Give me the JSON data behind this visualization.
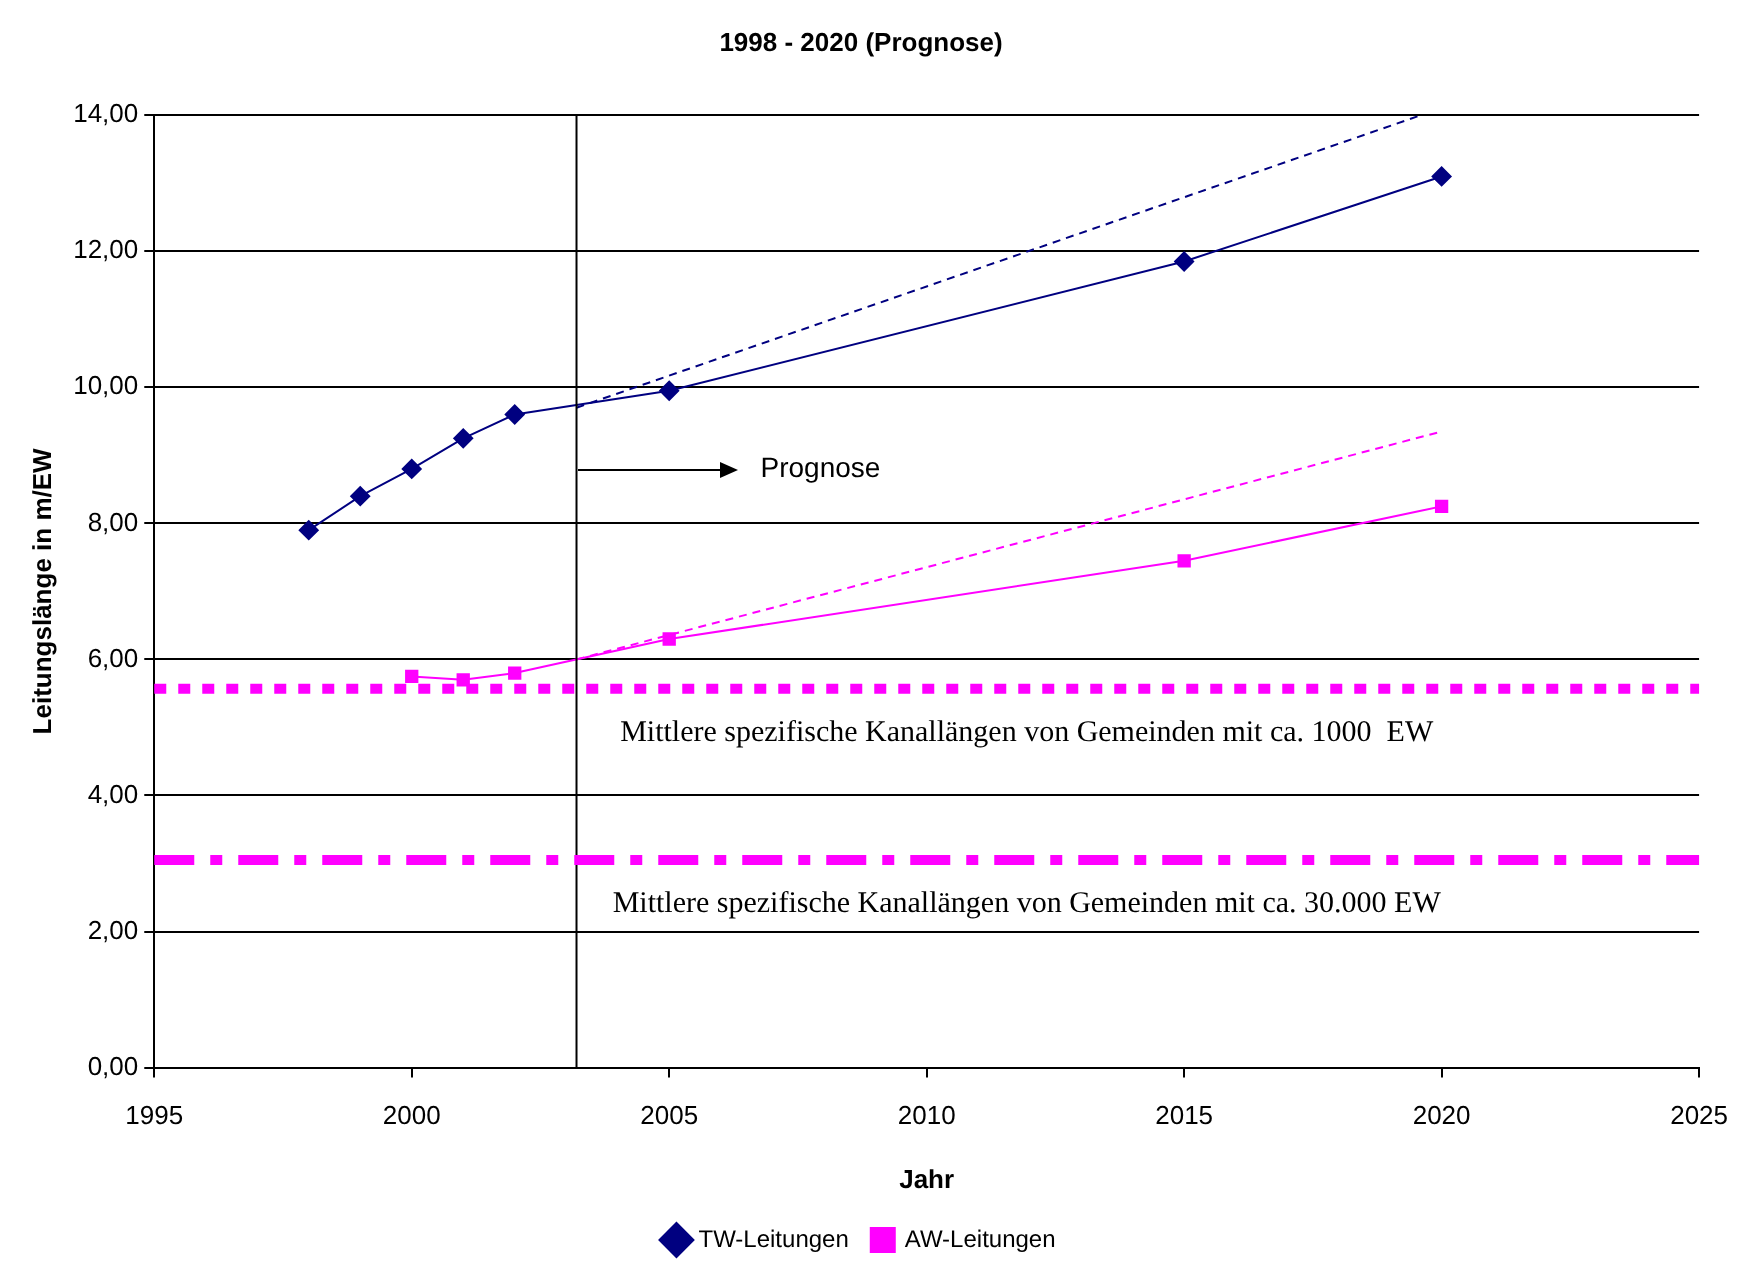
{
  "chart_data": {
    "type": "line",
    "title": "1998 - 2020 (Prognose)",
    "xlabel": "Jahr",
    "ylabel": "Leitungslänge in m/EW",
    "xlim": [
      1995,
      2025
    ],
    "xticks": [
      1995,
      2000,
      2005,
      2010,
      2015,
      2020,
      2025
    ],
    "ylim": [
      0,
      14
    ],
    "yticks": [
      {
        "value": 0,
        "label": "0,00"
      },
      {
        "value": 2,
        "label": "2,00"
      },
      {
        "value": 4,
        "label": "4,00"
      },
      {
        "value": 6,
        "label": "6,00"
      },
      {
        "value": 8,
        "label": "8,00"
      },
      {
        "value": 10,
        "label": "10,00"
      },
      {
        "value": 12,
        "label": "12,00"
      },
      {
        "value": 14,
        "label": "14,00"
      }
    ],
    "grid": "y",
    "legend": "bottom",
    "series": [
      {
        "name": "TW-Leitungen",
        "color": "#000080",
        "marker": "diamond",
        "x": [
          1998,
          1999,
          2000,
          2001,
          2002,
          2005,
          2015,
          2020
        ],
        "values": [
          7.9,
          8.4,
          8.8,
          9.25,
          9.6,
          9.95,
          11.85,
          13.1
        ]
      },
      {
        "name": "AW-Leitungen",
        "color": "#ff00ff",
        "marker": "square",
        "x": [
          2000,
          2001,
          2002,
          2005,
          2015,
          2020
        ],
        "values": [
          5.75,
          5.7,
          5.8,
          6.3,
          7.45,
          8.25
        ]
      },
      {
        "type": "line",
        "color": "#000080",
        "marker": "none",
        "line_style": "dashed",
        "x": [
          2003.2,
          2019.6
        ],
        "values": [
          9.7,
          14
        ]
      },
      {
        "type": "line",
        "color": "#ff00ff",
        "marker": "none",
        "line_style": "dashed",
        "x": [
          2003.2,
          2020
        ],
        "values": [
          6.0,
          9.35
        ]
      }
    ],
    "ref_lines": [
      {
        "axis": "x",
        "value": 2003.2,
        "color": "#000000",
        "line_style": "solid"
      },
      {
        "axis": "y",
        "value": 5.57,
        "label": "Mittlere spezifische Kanallängen von Gemeinden mit ca. 1000  EW",
        "color": "#ff00ff",
        "line_style": "dotted"
      },
      {
        "axis": "y",
        "value": 3.05,
        "label": "Mittlere spezifische Kanallängen von Gemeinden mit ca. 30.000 EW",
        "color": "#ff00ff",
        "line_style": "dashed"
      }
    ],
    "annotations": [
      "Prognose"
    ]
  }
}
